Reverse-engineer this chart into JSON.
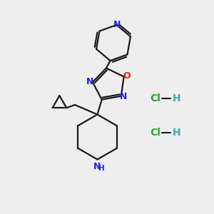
{
  "bg": "#eeeeee",
  "bond_color": "#1a1a1a",
  "N_color": "#2222dd",
  "O_color": "#dd2222",
  "Cl_color": "#22aa22",
  "figsize": [
    3.0,
    3.0
  ],
  "dpi": 100,
  "xlim": [
    0,
    10
  ],
  "ylim": [
    0,
    10
  ]
}
